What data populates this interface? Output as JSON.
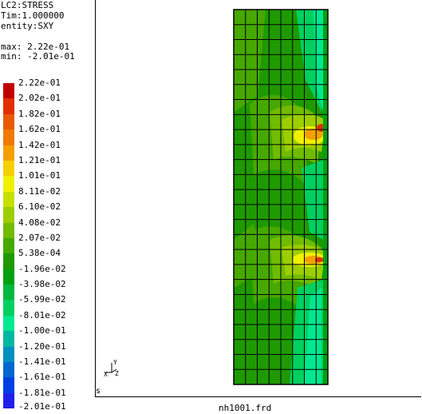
{
  "info": {
    "lc": "LC2:STRESS",
    "tim": "Tim:1.000000",
    "entity": "entity:SXY",
    "max": "max: 2.22e-01",
    "min": "min: -2.01e-01"
  },
  "legend": {
    "labels": [
      "2.22e-01",
      "2.02e-01",
      "1.82e-01",
      "1.62e-01",
      "1.42e-01",
      "1.21e-01",
      "1.01e-01",
      "8.11e-02",
      "6.10e-02",
      "4.08e-02",
      "2.07e-02",
      "5.38e-04",
      "-1.96e-02",
      "-3.98e-02",
      "-5.99e-02",
      "-8.01e-02",
      "-1.00e-01",
      "-1.20e-01",
      "-1.41e-01",
      "-1.61e-01",
      "-1.81e-01",
      "-2.01e-01"
    ],
    "colors": [
      "#c00000",
      "#e03000",
      "#e85a00",
      "#f07a00",
      "#f5a000",
      "#f5d000",
      "#f0f000",
      "#c8e000",
      "#9cce00",
      "#70bc00",
      "#46a800",
      "#1e9a00",
      "#00a010",
      "#00b840",
      "#00d060",
      "#00e890",
      "#00b8a0",
      "#0090c0",
      "#0068d0",
      "#0040e0",
      "#2020e8",
      "#8020f0"
    ],
    "last_label": "-2.01e-01"
  },
  "viewport": {
    "s_label": "s",
    "filename": "nh1001.frd",
    "axis_x": "X",
    "axis_y": "Y",
    "axis_z": "Z"
  },
  "model": {
    "cols": 8,
    "rows": 25,
    "colors": {
      "base": "#1e9a00",
      "mid": "#46a800",
      "light": "#70bc00",
      "lighter": "#9cce00",
      "yellow": "#f0f000",
      "orange": "#f5a000",
      "red": "#e03000",
      "cyan_green": "#00d060",
      "bright_green": "#00e890",
      "dark_green": "#00a010"
    }
  }
}
